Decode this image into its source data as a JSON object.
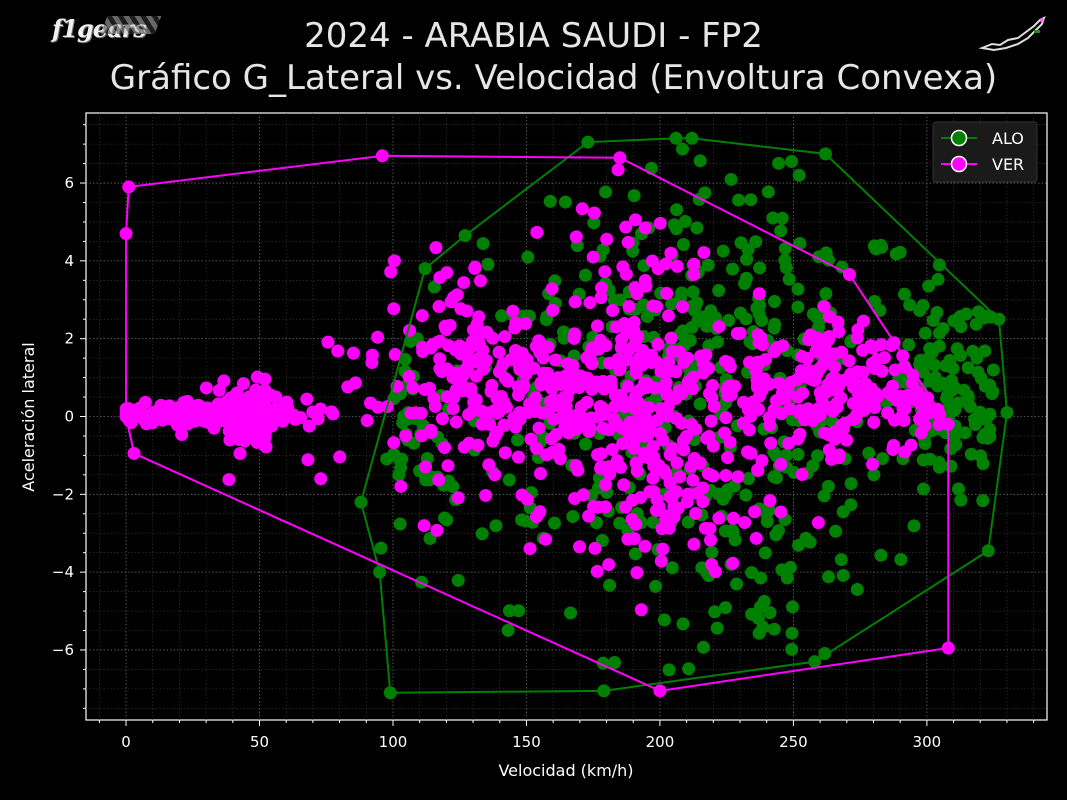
{
  "header": {
    "title_line1": "2024 - ARABIA SAUDI - FP2",
    "title_line2": "Gráfico G_Lateral vs. Velocidad (Envoltura Convexa)",
    "logo_text": "f1gears"
  },
  "chart_data": {
    "type": "scatter",
    "xlabel": "Velocidad (km/h)",
    "ylabel": "Aceleración lateral",
    "xlim": [
      -15,
      345
    ],
    "ylim": [
      -7.8,
      7.8
    ],
    "x_ticks": [
      0,
      50,
      100,
      150,
      200,
      250,
      300
    ],
    "y_ticks": [
      -6,
      -4,
      -2,
      0,
      2,
      4,
      6
    ],
    "grid": true,
    "legend_position": "top-right",
    "series": [
      {
        "name": "ALO",
        "color": "#008000",
        "hull": [
          [
            99,
            -7.1
          ],
          [
            179,
            -7.05
          ],
          [
            258,
            -6.3
          ],
          [
            323,
            -3.45
          ],
          [
            330,
            0.1
          ],
          [
            327,
            2.5
          ],
          [
            262,
            6.75
          ],
          [
            212,
            7.15
          ],
          [
            206,
            7.15
          ],
          [
            173,
            7.05
          ],
          [
            127,
            4.65
          ],
          [
            112,
            3.8
          ],
          [
            88,
            -2.2
          ],
          [
            95,
            -4.0
          ]
        ],
        "clusters": [
          {
            "cx": 200,
            "cy": 0.5,
            "sx": 55,
            "sy": 2.6,
            "n": 320
          },
          {
            "cx": 310,
            "cy": 0.5,
            "sx": 12,
            "sy": 1.6,
            "n": 110
          },
          {
            "cx": 240,
            "cy": -3.2,
            "sx": 22,
            "sy": 1.6,
            "n": 60
          },
          {
            "cx": 230,
            "cy": 3.5,
            "sx": 25,
            "sy": 1.5,
            "n": 60
          },
          {
            "cx": 105,
            "cy": -1.0,
            "sx": 8,
            "sy": 1.8,
            "n": 30
          }
        ]
      },
      {
        "name": "VER",
        "color": "#ff00ff",
        "hull": [
          [
            3,
            -0.95
          ],
          [
            200,
            -7.05
          ],
          [
            308,
            -5.95
          ],
          [
            308,
            -0.2
          ],
          [
            271,
            3.65
          ],
          [
            185,
            6.65
          ],
          [
            96,
            6.7
          ],
          [
            1,
            5.9
          ],
          [
            0,
            4.7
          ],
          [
            0,
            0
          ]
        ],
        "clusters": [
          {
            "cx": 25,
            "cy": 0.05,
            "sx": 22,
            "sy": 0.18,
            "n": 150
          },
          {
            "cx": 45,
            "cy": 0.05,
            "sx": 5,
            "sy": 0.45,
            "n": 80
          },
          {
            "cx": 180,
            "cy": 0.3,
            "sx": 50,
            "sy": 1.1,
            "n": 420
          },
          {
            "cx": 200,
            "cy": -2.2,
            "sx": 20,
            "sy": 1.3,
            "n": 90
          },
          {
            "cx": 190,
            "cy": 3.2,
            "sx": 12,
            "sy": 1.2,
            "n": 60
          },
          {
            "cx": 265,
            "cy": 0.8,
            "sx": 16,
            "sy": 0.8,
            "n": 120
          },
          {
            "cx": 125,
            "cy": 1.8,
            "sx": 10,
            "sy": 1.2,
            "n": 60
          },
          {
            "cx": 300,
            "cy": 0.3,
            "sx": 6,
            "sy": 0.3,
            "n": 25
          }
        ]
      }
    ]
  }
}
